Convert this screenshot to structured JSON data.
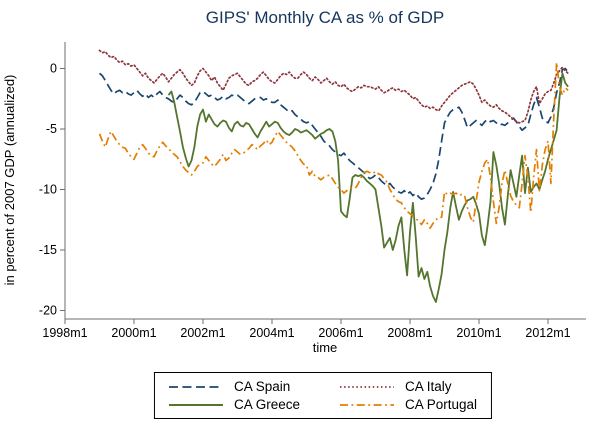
{
  "title": "GIPS' Monthly CA as % of GDP",
  "chart_data": {
    "type": "line",
    "title": "GIPS' Monthly CA as % of GDP",
    "xlabel": "time",
    "ylabel": "in percent of 2007 GDP (annualized)",
    "x_tick_labels": [
      "1998m1",
      "2000m1",
      "2002m1",
      "2004m1",
      "2006m1",
      "2008m1",
      "2010m1",
      "2012m1"
    ],
    "y_ticks": [
      0,
      -5,
      -10,
      -15,
      -20
    ],
    "ylim": [
      -20.7,
      2.0
    ],
    "xlim": [
      "1998m1",
      "2013m2"
    ],
    "grid": false,
    "legend_position": "bottom-center",
    "x_unit": "monthly",
    "series": [
      {
        "name": "CA Spain",
        "color": "#1a476f",
        "style": "dashed",
        "start": "1999m1",
        "values": [
          -0.4,
          -0.6,
          -1.0,
          -1.4,
          -1.8,
          -2.1,
          -1.9,
          -1.8,
          -2.0,
          -1.9,
          -2.1,
          -2.2,
          -2.0,
          -1.8,
          -2.1,
          -2.3,
          -2.1,
          -2.4,
          -2.2,
          -2.4,
          -2.1,
          -1.9,
          -2.2,
          -2.4,
          -2.5,
          -2.7,
          -2.8,
          -2.5,
          -2.2,
          -2.4,
          -2.7,
          -2.9,
          -3.0,
          -2.8,
          -2.4,
          -2.0,
          -1.9,
          -2.1,
          -2.3,
          -2.2,
          -2.4,
          -2.6,
          -2.5,
          -2.3,
          -2.5,
          -2.4,
          -2.2,
          -2.3,
          -2.2,
          -2.4,
          -2.6,
          -2.8,
          -2.9,
          -2.7,
          -2.5,
          -2.4,
          -2.4,
          -2.6,
          -2.5,
          -2.7,
          -2.8,
          -2.8,
          -2.6,
          -3.0,
          -3.2,
          -3.4,
          -3.6,
          -3.5,
          -3.8,
          -4.0,
          -4.2,
          -4.4,
          -4.5,
          -4.4,
          -4.7,
          -5.0,
          -5.3,
          -5.6,
          -6.0,
          -6.2,
          -6.4,
          -6.7,
          -6.9,
          -7.1,
          -7.2,
          -7.0,
          -7.3,
          -7.6,
          -7.8,
          -8.0,
          -8.2,
          -8.4,
          -8.6,
          -8.9,
          -9.1,
          -9.0,
          -8.8,
          -9.0,
          -9.3,
          -9.5,
          -9.7,
          -9.5,
          -9.8,
          -10.0,
          -10.2,
          -10.3,
          -10.1,
          -10.4,
          -10.2,
          -10.5,
          -10.3,
          -10.6,
          -10.8,
          -10.7,
          -10.4,
          -10.0,
          -9.5,
          -8.7,
          -7.5,
          -6.0,
          -4.5,
          -4.0,
          -3.6,
          -3.4,
          -3.3,
          -3.2,
          -3.6,
          -4.2,
          -4.9,
          -4.7,
          -4.5,
          -4.3,
          -4.5,
          -4.7,
          -4.4,
          -4.2,
          -4.4,
          -4.3,
          -4.5,
          -4.7,
          -4.6,
          -4.7,
          -4.5,
          -4.3,
          -4.1,
          -4.4,
          -4.8,
          -5.1,
          -4.9,
          -4.7,
          -3.8,
          -3.0,
          -2.4,
          -3.2,
          -4.1,
          -4.3,
          -4.5,
          -4.0,
          -3.2,
          -2.0,
          -1.2,
          -0.1,
          0.0,
          -0.3
        ]
      },
      {
        "name": "CA Italy",
        "color": "#90353b",
        "style": "dotted",
        "start": "1999m1",
        "values": [
          1.5,
          1.3,
          1.4,
          1.1,
          0.9,
          1.0,
          0.7,
          0.5,
          0.6,
          0.3,
          0.4,
          0.2,
          0.3,
          0.0,
          -0.3,
          -0.6,
          -0.4,
          -0.8,
          -1.0,
          -1.2,
          -0.9,
          -0.6,
          -0.4,
          -0.7,
          -1.1,
          -0.8,
          -0.5,
          -0.3,
          -0.1,
          -0.4,
          -0.8,
          -1.1,
          -1.4,
          -1.2,
          -0.6,
          -0.2,
          0.0,
          -0.3,
          -0.6,
          -1.0,
          -0.7,
          -1.2,
          -1.5,
          -1.8,
          -1.3,
          -0.8,
          -0.6,
          -0.5,
          -0.4,
          -0.7,
          -1.0,
          -1.3,
          -1.4,
          -1.1,
          -1.0,
          -0.8,
          -0.5,
          -0.3,
          -0.6,
          -0.9,
          -1.1,
          -1.2,
          -0.9,
          -0.6,
          -0.4,
          -0.5,
          -0.3,
          -0.6,
          -0.8,
          -0.8,
          -0.5,
          -0.3,
          -0.5,
          -0.8,
          -1.0,
          -0.7,
          -0.9,
          -1.2,
          -1.0,
          -0.8,
          -1.1,
          -1.3,
          -1.1,
          -1.4,
          -1.5,
          -1.3,
          -1.6,
          -1.8,
          -1.9,
          -1.7,
          -1.5,
          -1.6,
          -1.4,
          -1.5,
          -1.5,
          -1.6,
          -1.7,
          -1.5,
          -1.8,
          -2.0,
          -1.9,
          -1.7,
          -1.6,
          -1.8,
          -1.7,
          -1.9,
          -1.8,
          -2.0,
          -2.2,
          -2.5,
          -2.4,
          -2.7,
          -3.0,
          -3.2,
          -3.1,
          -3.3,
          -3.2,
          -3.4,
          -3.5,
          -3.1,
          -2.8,
          -2.5,
          -2.2,
          -2.0,
          -1.8,
          -1.6,
          -1.4,
          -1.3,
          -1.2,
          -1.1,
          -1.3,
          -1.7,
          -2.2,
          -2.8,
          -2.6,
          -2.9,
          -3.1,
          -3.2,
          -3.0,
          -3.3,
          -3.5,
          -3.6,
          -3.8,
          -4.0,
          -4.2,
          -4.4,
          -4.5,
          -4.4,
          -4.3,
          -3.6,
          -2.6,
          -1.9,
          -1.5,
          -2.9,
          -2.5,
          -2.1,
          -1.9,
          -1.8,
          -1.2,
          -0.5,
          -0.2,
          0.1,
          -0.2,
          -0.4
        ]
      },
      {
        "name": "CA Greece",
        "color": "#55752f",
        "style": "solid",
        "start": "2001m1",
        "values": [
          -2.2,
          -1.9,
          -2.8,
          -4.0,
          -5.2,
          -6.5,
          -7.4,
          -8.1,
          -7.6,
          -6.5,
          -4.8,
          -3.8,
          -3.4,
          -4.4,
          -3.8,
          -4.2,
          -4.6,
          -4.8,
          -4.5,
          -4.3,
          -4.4,
          -4.9,
          -5.2,
          -4.6,
          -4.4,
          -4.7,
          -4.8,
          -4.5,
          -4.6,
          -5.0,
          -5.4,
          -5.7,
          -5.2,
          -4.8,
          -4.4,
          -4.8,
          -4.6,
          -4.4,
          -4.5,
          -4.9,
          -5.2,
          -5.4,
          -5.5,
          -5.3,
          -5.0,
          -5.1,
          -5.3,
          -5.2,
          -5.1,
          -5.3,
          -5.5,
          -5.8,
          -5.6,
          -5.4,
          -5.3,
          -5.1,
          -5.0,
          -5.2,
          -6.0,
          -7.6,
          -11.8,
          -12.1,
          -12.3,
          -10.8,
          -9.0,
          -8.8,
          -8.9,
          -8.8,
          -9.0,
          -9.3,
          -9.5,
          -9.7,
          -10.0,
          -11.5,
          -13.0,
          -14.8,
          -14.4,
          -14.0,
          -15.0,
          -14.2,
          -13.0,
          -12.3,
          -15.0,
          -17.1,
          -13.5,
          -11.1,
          -14.0,
          -17.2,
          -16.5,
          -17.4,
          -16.8,
          -18.0,
          -18.8,
          -19.3,
          -18.2,
          -17.0,
          -15.0,
          -13.5,
          -11.5,
          -10.2,
          -11.4,
          -12.5,
          -11.8,
          -11.3,
          -10.9,
          -10.8,
          -10.6,
          -11.2,
          -12.0,
          -13.8,
          -14.6,
          -13.0,
          -11.0,
          -6.9,
          -8.0,
          -9.5,
          -11.5,
          -12.9,
          -10.5,
          -8.4,
          -9.5,
          -10.6,
          -8.8,
          -7.2,
          -10.3,
          -8.2,
          -10.2,
          -9.8,
          -9.5,
          -10.0,
          -9.2,
          -8.5,
          -7.5,
          -6.7,
          -5.9,
          -5.1,
          -2.4,
          -0.4,
          -1.2,
          -1.5
        ]
      },
      {
        "name": "CA Portugal",
        "color": "#e37e00",
        "style": "dash-dot",
        "start": "1999m1",
        "values": [
          -5.4,
          -6.0,
          -6.5,
          -5.8,
          -5.2,
          -5.6,
          -6.0,
          -6.3,
          -6.5,
          -6.6,
          -7.0,
          -7.3,
          -7.5,
          -7.0,
          -6.5,
          -6.3,
          -6.6,
          -7.0,
          -7.2,
          -7.3,
          -6.8,
          -6.4,
          -6.1,
          -6.4,
          -6.6,
          -6.9,
          -7.1,
          -7.3,
          -7.7,
          -8.1,
          -8.4,
          -8.6,
          -8.8,
          -8.5,
          -8.1,
          -7.9,
          -7.8,
          -7.3,
          -7.6,
          -7.9,
          -8.1,
          -7.8,
          -7.5,
          -7.1,
          -7.6,
          -7.4,
          -7.0,
          -6.7,
          -6.9,
          -7.1,
          -7.0,
          -6.8,
          -6.6,
          -6.3,
          -6.5,
          -6.7,
          -6.4,
          -6.2,
          -5.9,
          -6.3,
          -6.1,
          -5.6,
          -5.2,
          -5.5,
          -5.8,
          -6.1,
          -6.3,
          -6.5,
          -6.8,
          -7.2,
          -7.6,
          -7.9,
          -8.0,
          -8.8,
          -8.5,
          -8.9,
          -9.0,
          -9.2,
          -9.0,
          -8.9,
          -8.8,
          -9.1,
          -9.5,
          -9.8,
          -10.0,
          -10.3,
          -10.1,
          -9.9,
          -9.9,
          -9.9,
          -9.5,
          -9.0,
          -8.6,
          -8.5,
          -8.6,
          -8.7,
          -8.5,
          -8.7,
          -8.8,
          -9.1,
          -9.4,
          -10.0,
          -10.4,
          -10.8,
          -11.0,
          -11.1,
          -11.5,
          -11.8,
          -12.0,
          -12.2,
          -12.4,
          -12.6,
          -12.9,
          -12.5,
          -12.8,
          -13.2,
          -12.8,
          -12.5,
          -12.3,
          -12.3,
          -10.2,
          -10.4,
          -10.3,
          -10.4,
          -10.3,
          -10.5,
          -10.4,
          -10.5,
          -11.5,
          -12.3,
          -12.7,
          -11.0,
          -9.4,
          -8.5,
          -7.8,
          -7.5,
          -9.0,
          -11.0,
          -12.8,
          -11.5,
          -9.5,
          -8.4,
          -9.5,
          -10.5,
          -11.0,
          -11.3,
          -11.5,
          -9.5,
          -7.2,
          -9.0,
          -11.9,
          -9.0,
          -6.7,
          -10.1,
          -8.0,
          -6.7,
          -6.0,
          -9.5,
          -4.0,
          0.5,
          -1.5,
          -2.2,
          -1.6,
          -1.8
        ]
      }
    ],
    "colors": {
      "title": "#16365d",
      "axis": "#6e6e6e",
      "text": "#000000",
      "background": "#ffffff"
    }
  }
}
